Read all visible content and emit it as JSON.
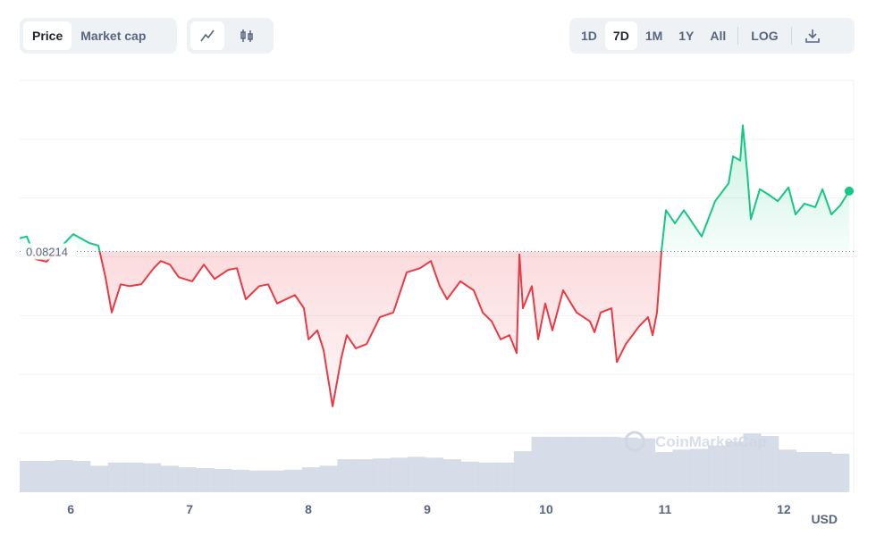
{
  "toolbar": {
    "tabs": [
      "Price",
      "Market cap"
    ],
    "active_tab_index": 0,
    "ranges": [
      "1D",
      "7D",
      "1M",
      "1Y",
      "All"
    ],
    "active_range_index": 1,
    "log_button": "LOG"
  },
  "chart_data": {
    "type": "line",
    "x": [
      5.57,
      5.63,
      5.705,
      5.796,
      5.856,
      6.021,
      6.157,
      6.232,
      6.292,
      6.345,
      6.42,
      6.495,
      6.593,
      6.698,
      6.758,
      6.834,
      6.909,
      7.022,
      7.12,
      7.21,
      7.323,
      7.398,
      7.473,
      7.586,
      7.661,
      7.736,
      7.887,
      7.962,
      8.0,
      8.075,
      8.127,
      8.203,
      8.278,
      8.323,
      8.398,
      8.489,
      8.601,
      8.714,
      8.827,
      8.94,
      9.03,
      9.105,
      9.166,
      9.278,
      9.391,
      9.466,
      9.542,
      9.617,
      9.692,
      9.752,
      9.775,
      9.805,
      9.88,
      9.933,
      9.993,
      10.053,
      10.143,
      10.256,
      10.369,
      10.407,
      10.459,
      10.55,
      10.595,
      10.67,
      10.783,
      10.858,
      10.896,
      10.933,
      10.971,
      11.008,
      11.084,
      11.159,
      11.309,
      11.422,
      11.535,
      11.573,
      11.633,
      11.655,
      11.693,
      11.723,
      11.798,
      11.873,
      11.949,
      12.039,
      12.099,
      12.174,
      12.265,
      12.325,
      12.4,
      12.475,
      12.55
    ],
    "values": [
      0.08236,
      0.08239,
      0.08201,
      0.08197,
      0.08209,
      0.08243,
      0.08228,
      0.08224,
      0.08171,
      0.08112,
      0.08159,
      0.08156,
      0.08159,
      0.08186,
      0.08198,
      0.08192,
      0.08171,
      0.08164,
      0.08192,
      0.08168,
      0.08183,
      0.08186,
      0.08134,
      0.08156,
      0.08159,
      0.08127,
      0.08141,
      0.08119,
      0.08067,
      0.08082,
      0.08049,
      0.07955,
      0.08037,
      0.08074,
      0.08052,
      0.08059,
      0.08104,
      0.08112,
      0.08179,
      0.08186,
      0.08198,
      0.08156,
      0.08134,
      0.08164,
      0.08149,
      0.08112,
      0.08097,
      0.08067,
      0.08074,
      0.08044,
      0.08209,
      0.08119,
      0.08156,
      0.08067,
      0.08127,
      0.08082,
      0.08149,
      0.08112,
      0.08097,
      0.08079,
      0.08112,
      0.08119,
      0.08029,
      0.08059,
      0.08089,
      0.08104,
      0.08074,
      0.08112,
      0.08216,
      0.08283,
      0.08261,
      0.08283,
      0.08239,
      0.08298,
      0.08328,
      0.08373,
      0.08366,
      0.08425,
      0.08343,
      0.08268,
      0.08318,
      0.08309,
      0.08298,
      0.08321,
      0.08276,
      0.08294,
      0.08288,
      0.08318,
      0.08276,
      0.08291,
      0.08315
    ],
    "reference_value": 0.08214,
    "up_color": "#16c784",
    "down_color": "#ea3943",
    "xlim": [
      5.57,
      12.55
    ],
    "xticks": [
      6,
      7,
      8,
      9,
      10,
      11,
      12
    ],
    "ylim": [
      0.0791,
      0.085
    ],
    "volume": {
      "color": "#cfd6e4",
      "ylim": [
        0,
        100
      ],
      "values": [
        39,
        39,
        40,
        39,
        33,
        37,
        37,
        36,
        33,
        31,
        30,
        29,
        28,
        27,
        27,
        28,
        31,
        33,
        41,
        41,
        42,
        43,
        44,
        43,
        41,
        38,
        37,
        37,
        51,
        69,
        69,
        69,
        69,
        69,
        68,
        67,
        50,
        53,
        54,
        58,
        63,
        73,
        70,
        53,
        50,
        50,
        48
      ]
    },
    "currency": "USD",
    "watermark": "CoinMarketCap"
  }
}
